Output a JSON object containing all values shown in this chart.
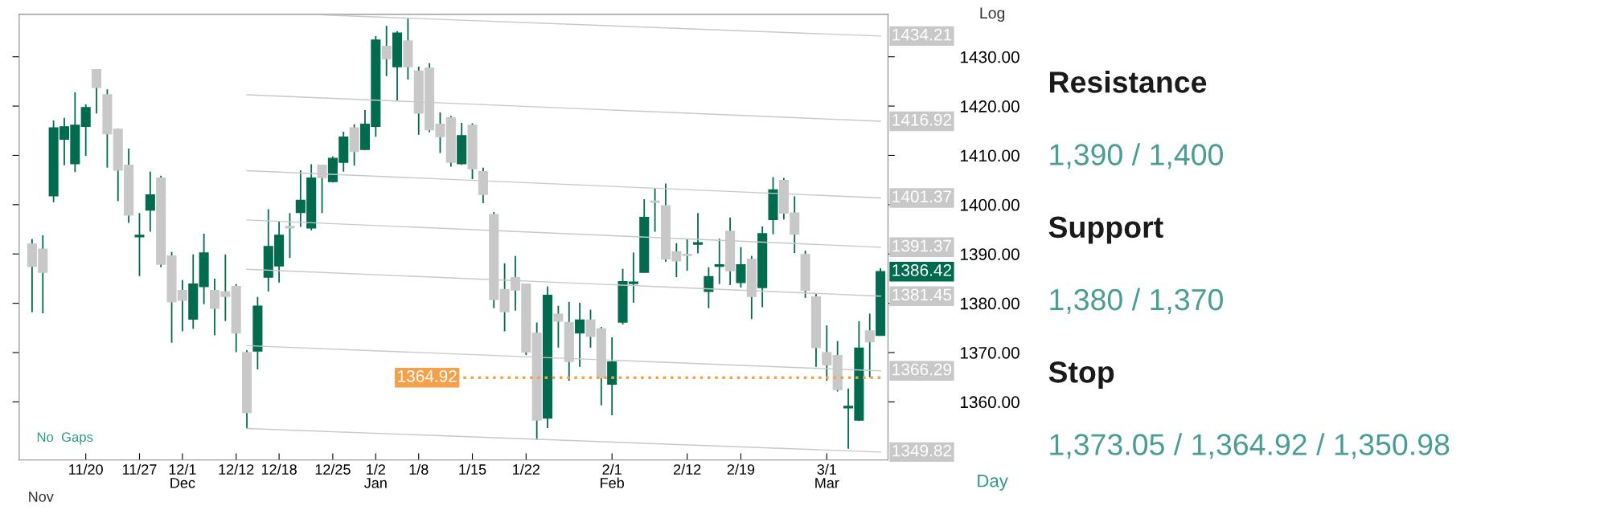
{
  "chart_data": [
    {
      "type": "candlestick",
      "categories": [
        null,
        null,
        null,
        null,
        null,
        "11/20",
        null,
        null,
        null,
        null,
        "11/27",
        null,
        null,
        null,
        "12/1\nDec",
        null,
        null,
        null,
        null,
        "12/12",
        null,
        null,
        null,
        "12/18",
        null,
        null,
        null,
        null,
        "12/25",
        null,
        null,
        null,
        "1/2\nJan",
        null,
        null,
        null,
        "1/8",
        null,
        null,
        null,
        null,
        "1/15",
        null,
        null,
        null,
        null,
        "1/22",
        null,
        null,
        null,
        null,
        null,
        null,
        null,
        "2/1\nFeb",
        null,
        null,
        null,
        null,
        null,
        null,
        "2/12",
        null,
        null,
        null,
        null,
        "2/19",
        null,
        null,
        null,
        null,
        null,
        null,
        null,
        "3/1\nMar",
        null,
        null,
        null,
        null,
        null
      ],
      "ohlc": [
        [
          1392.0,
          1393.0,
          1378.2,
          1387.5
        ],
        [
          1391.0,
          1393.8,
          1378.0,
          1386.3
        ],
        [
          1401.8,
          1417.1,
          1400.5,
          1415.6
        ],
        [
          1413.3,
          1417.6,
          1408.0,
          1415.8
        ],
        [
          1408.3,
          1422.8,
          1406.6,
          1416.1
        ],
        [
          1415.9,
          1420.4,
          1409.9,
          1419.7
        ],
        [
          1427.4,
          1427.5,
          1418.5,
          1423.8
        ],
        [
          1422.3,
          1423.4,
          1407.5,
          1414.4
        ],
        [
          1415.3,
          1415.4,
          1400.7,
          1407.0
        ],
        [
          1408.0,
          1411.4,
          1396.3,
          1397.9
        ],
        [
          1393.5,
          1398.3,
          1385.5,
          1393.8
        ],
        [
          1398.9,
          1406.7,
          1394.5,
          1402.0
        ],
        [
          1405.4,
          1405.9,
          1387.3,
          1387.9
        ],
        [
          1389.6,
          1390.4,
          1372.0,
          1380.3
        ],
        [
          1382.6,
          1384.7,
          1374.3,
          1380.6
        ],
        [
          1376.8,
          1389.9,
          1374.8,
          1383.9
        ],
        [
          1383.4,
          1394.1,
          1379.8,
          1390.2
        ],
        [
          1382.6,
          1385.0,
          1373.5,
          1379.0
        ],
        [
          1382.3,
          1389.9,
          1376.4,
          1381.4
        ],
        [
          1383.4,
          1383.9,
          1370.1,
          1374.0
        ],
        [
          1370.0,
          1370.5,
          1354.6,
          1357.8
        ],
        [
          1370.3,
          1381.3,
          1366.6,
          1379.4
        ],
        [
          1385.3,
          1399.1,
          1382.4,
          1391.5
        ],
        [
          1387.6,
          1396.6,
          1384.2,
          1393.8
        ],
        [
          1395.6,
          1398.3,
          1389.2,
          1395.3
        ],
        [
          1398.4,
          1407.0,
          1395.5,
          1400.9
        ],
        [
          1395.3,
          1408.2,
          1394.8,
          1405.4
        ],
        [
          1408.0,
          1408.1,
          1398.3,
          1405.5
        ],
        [
          1404.7,
          1409.8,
          1404.5,
          1409.4
        ],
        [
          1408.6,
          1414.8,
          1406.7,
          1413.7
        ],
        [
          1415.6,
          1416.3,
          1407.9,
          1410.8
        ],
        [
          1411.2,
          1419.2,
          1411.1,
          1416.3
        ],
        [
          1415.9,
          1434.2,
          1413.8,
          1433.4
        ],
        [
          1432.1,
          1436.3,
          1426.1,
          1429.6
        ],
        [
          1428.0,
          1435.2,
          1421.1,
          1434.8
        ],
        [
          1433.2,
          1437.8,
          1425.4,
          1428.0
        ],
        [
          1427.1,
          1428.0,
          1414.2,
          1418.6
        ],
        [
          1427.7,
          1428.7,
          1414.7,
          1415.2
        ],
        [
          1416.3,
          1418.7,
          1410.5,
          1413.8
        ],
        [
          1417.6,
          1418.0,
          1407.7,
          1408.6
        ],
        [
          1408.3,
          1416.6,
          1408.1,
          1414.0
        ],
        [
          1416.1,
          1416.5,
          1405.2,
          1407.3
        ],
        [
          1406.7,
          1407.5,
          1400.3,
          1402.1
        ],
        [
          1398.0,
          1398.5,
          1379.0,
          1380.8
        ],
        [
          1382.8,
          1388.1,
          1374.3,
          1378.3
        ],
        [
          1385.2,
          1389.6,
          1378.5,
          1382.7
        ],
        [
          1383.9,
          1384.0,
          1369.5,
          1370.1
        ],
        [
          1373.9,
          1376.1,
          1352.3,
          1356.3
        ],
        [
          1356.7,
          1383.4,
          1354.7,
          1381.6
        ],
        [
          1377.8,
          1379.5,
          1371.0,
          1376.4
        ],
        [
          1376.1,
          1380.3,
          1364.3,
          1368.2
        ],
        [
          1374.0,
          1380.1,
          1367.1,
          1376.6
        ],
        [
          1376.6,
          1378.7,
          1371.0,
          1373.3
        ],
        [
          1374.8,
          1375.2,
          1359.3,
          1364.9
        ],
        [
          1363.6,
          1373.1,
          1357.3,
          1368.1
        ],
        [
          1376.2,
          1387.0,
          1375.7,
          1384.4
        ],
        [
          1384.0,
          1390.3,
          1380.1,
          1384.3
        ],
        [
          1386.3,
          1401.1,
          1386.2,
          1397.4
        ],
        [
          1400.7,
          1403.4,
          1394.5,
          1400.5
        ],
        [
          1399.8,
          1404.3,
          1388.4,
          1389.0
        ],
        [
          1390.4,
          1392.2,
          1385.3,
          1388.6
        ],
        [
          1389.9,
          1393.0,
          1386.6,
          1389.7
        ],
        [
          1392.0,
          1398.3,
          1390.1,
          1392.3
        ],
        [
          1382.4,
          1387.3,
          1379.0,
          1385.4
        ],
        [
          1387.5,
          1393.1,
          1383.9,
          1387.8
        ],
        [
          1394.6,
          1397.4,
          1383.7,
          1386.6
        ],
        [
          1384.2,
          1391.4,
          1383.2,
          1387.8
        ],
        [
          1388.9,
          1389.6,
          1376.8,
          1381.4
        ],
        [
          1383.2,
          1395.6,
          1379.2,
          1394.1
        ],
        [
          1397.0,
          1405.6,
          1394.0,
          1403.0
        ],
        [
          1404.9,
          1405.4,
          1397.0,
          1398.3
        ],
        [
          1398.3,
          1401.7,
          1390.2,
          1394.0
        ],
        [
          1389.9,
          1390.7,
          1381.1,
          1382.6
        ],
        [
          1381.3,
          1381.9,
          1367.1,
          1371.0
        ],
        [
          1370.0,
          1375.5,
          1364.3,
          1367.5
        ],
        [
          1369.4,
          1372.3,
          1362.1,
          1362.5
        ],
        [
          1358.8,
          1362.7,
          1350.5,
          1359.1
        ],
        [
          1356.3,
          1376.4,
          1356.1,
          1370.9
        ],
        [
          1374.4,
          1377.9,
          1365.0,
          1372.2
        ],
        [
          1373.5,
          1387.1,
          1373.4,
          1386.42
        ]
      ],
      "colors": [
        "#c8c8c8",
        "#c8c8c8",
        "#006b4f",
        "#006b4f",
        "#006b4f",
        "#006b4f",
        "#c8c8c8",
        "#c8c8c8",
        "#c8c8c8",
        "#c8c8c8",
        "#006b4f",
        "#006b4f",
        "#c8c8c8",
        "#c8c8c8",
        "#c8c8c8",
        "#006b4f",
        "#006b4f",
        "#c8c8c8",
        "#c8c8c8",
        "#c8c8c8",
        "#c8c8c8",
        "#006b4f",
        "#006b4f",
        "#006b4f",
        "#c8c8c8",
        "#006b4f",
        "#006b4f",
        "#c8c8c8",
        "#006b4f",
        "#006b4f",
        "#c8c8c8",
        "#006b4f",
        "#006b4f",
        "#c8c8c8",
        "#006b4f",
        "#c8c8c8",
        "#c8c8c8",
        "#c8c8c8",
        "#c8c8c8",
        "#c8c8c8",
        "#006b4f",
        "#c8c8c8",
        "#c8c8c8",
        "#c8c8c8",
        "#c8c8c8",
        "#c8c8c8",
        "#c8c8c8",
        "#c8c8c8",
        "#006b4f",
        "#c8c8c8",
        "#c8c8c8",
        "#006b4f",
        "#c8c8c8",
        "#c8c8c8",
        "#006b4f",
        "#006b4f",
        "#006b4f",
        "#006b4f",
        "#c8c8c8",
        "#c8c8c8",
        "#c8c8c8",
        "#c8c8c8",
        "#006b4f",
        "#006b4f",
        "#006b4f",
        "#c8c8c8",
        "#006b4f",
        "#c8c8c8",
        "#006b4f",
        "#006b4f",
        "#c8c8c8",
        "#c8c8c8",
        "#c8c8c8",
        "#c8c8c8",
        "#c8c8c8",
        "#c8c8c8",
        "#006b4f",
        "#006b4f",
        "#c8c8c8",
        "#006b4f"
      ],
      "color": "#006b4f",
      "series": [
        {
          "type": "line",
          "color": "#c8c8c8",
          "values": [
            null,
            null,
            null,
            null,
            null,
            null,
            null,
            null,
            null,
            null,
            null,
            null,
            null,
            null,
            null,
            null,
            null,
            null,
            null,
            null,
            null,
            null,
            null,
            null,
            null,
            null,
            null,
            1438.5,
            null,
            null,
            null,
            null,
            null,
            null,
            null,
            null,
            null,
            null,
            null,
            null,
            null,
            null,
            null,
            null,
            null,
            null,
            null,
            null,
            null,
            null,
            null,
            null,
            null,
            null,
            null,
            null,
            null,
            null,
            null,
            null,
            null,
            null,
            null,
            null,
            null,
            null,
            null,
            null,
            null,
            null,
            null,
            null,
            null,
            null,
            null,
            null,
            null,
            null,
            null,
            1434.21
          ],
          "value_labels": [
            null,
            null,
            null,
            null,
            null,
            null,
            null,
            null,
            null,
            null,
            null,
            null,
            null,
            null,
            null,
            null,
            null,
            null,
            null,
            null,
            null,
            null,
            null,
            null,
            null,
            null,
            null,
            null,
            null,
            null,
            null,
            null,
            null,
            null,
            null,
            null,
            null,
            null,
            null,
            null,
            null,
            null,
            null,
            null,
            null,
            null,
            null,
            null,
            null,
            null,
            null,
            null,
            null,
            null,
            null,
            null,
            null,
            null,
            null,
            null,
            null,
            null,
            null,
            null,
            null,
            null,
            null,
            null,
            null,
            null,
            null,
            null,
            null,
            null,
            null,
            null,
            null,
            null,
            null,
            "1434.21"
          ]
        },
        {
          "type": "line",
          "color": "#c8c8c8",
          "values": [
            null,
            null,
            null,
            null,
            null,
            null,
            null,
            null,
            null,
            null,
            null,
            null,
            null,
            null,
            null,
            null,
            null,
            null,
            null,
            null,
            1422.3,
            null,
            null,
            null,
            null,
            null,
            null,
            null,
            null,
            null,
            null,
            null,
            null,
            null,
            null,
            null,
            null,
            null,
            null,
            null,
            null,
            null,
            null,
            null,
            null,
            null,
            null,
            null,
            null,
            null,
            null,
            null,
            null,
            null,
            null,
            null,
            null,
            null,
            null,
            null,
            null,
            null,
            null,
            null,
            null,
            null,
            null,
            null,
            null,
            null,
            null,
            null,
            null,
            null,
            null,
            null,
            null,
            null,
            null,
            1416.92
          ],
          "value_labels": [
            null,
            null,
            null,
            null,
            null,
            null,
            null,
            null,
            null,
            null,
            null,
            null,
            null,
            null,
            null,
            null,
            null,
            null,
            null,
            null,
            null,
            null,
            null,
            null,
            null,
            null,
            null,
            null,
            null,
            null,
            null,
            null,
            null,
            null,
            null,
            null,
            null,
            null,
            null,
            null,
            null,
            null,
            null,
            null,
            null,
            null,
            null,
            null,
            null,
            null,
            null,
            null,
            null,
            null,
            null,
            null,
            null,
            null,
            null,
            null,
            null,
            null,
            null,
            null,
            null,
            null,
            null,
            null,
            null,
            null,
            null,
            null,
            null,
            null,
            null,
            null,
            null,
            null,
            null,
            "1416.92"
          ]
        },
        {
          "type": "line",
          "color": "#c8c8c8",
          "values": [
            null,
            null,
            null,
            null,
            null,
            null,
            null,
            null,
            null,
            null,
            null,
            null,
            null,
            null,
            null,
            null,
            null,
            null,
            null,
            null,
            1406.9,
            null,
            null,
            null,
            null,
            null,
            null,
            null,
            null,
            null,
            null,
            null,
            null,
            null,
            null,
            null,
            null,
            null,
            null,
            null,
            null,
            null,
            null,
            null,
            null,
            null,
            null,
            null,
            null,
            null,
            null,
            null,
            null,
            null,
            null,
            null,
            null,
            null,
            null,
            null,
            null,
            null,
            null,
            null,
            null,
            null,
            null,
            null,
            null,
            null,
            null,
            null,
            null,
            null,
            null,
            null,
            null,
            null,
            null,
            1401.37
          ],
          "value_labels": [
            null,
            null,
            null,
            null,
            null,
            null,
            null,
            null,
            null,
            null,
            null,
            null,
            null,
            null,
            null,
            null,
            null,
            null,
            null,
            null,
            null,
            null,
            null,
            null,
            null,
            null,
            null,
            null,
            null,
            null,
            null,
            null,
            null,
            null,
            null,
            null,
            null,
            null,
            null,
            null,
            null,
            null,
            null,
            null,
            null,
            null,
            null,
            null,
            null,
            null,
            null,
            null,
            null,
            null,
            null,
            null,
            null,
            null,
            null,
            null,
            null,
            null,
            null,
            null,
            null,
            null,
            null,
            null,
            null,
            null,
            null,
            null,
            null,
            null,
            null,
            null,
            null,
            null,
            null,
            "1401.37"
          ]
        },
        {
          "type": "line",
          "color": "#c8c8c8",
          "values": [
            null,
            null,
            null,
            null,
            null,
            null,
            null,
            null,
            null,
            null,
            null,
            null,
            null,
            null,
            null,
            null,
            null,
            null,
            null,
            null,
            1396.9,
            null,
            null,
            null,
            null,
            null,
            null,
            null,
            null,
            null,
            null,
            null,
            null,
            null,
            null,
            null,
            null,
            null,
            null,
            null,
            null,
            null,
            null,
            null,
            null,
            null,
            null,
            null,
            null,
            null,
            null,
            null,
            null,
            null,
            null,
            null,
            null,
            null,
            null,
            null,
            null,
            null,
            null,
            null,
            null,
            null,
            null,
            null,
            null,
            null,
            null,
            null,
            null,
            null,
            null,
            null,
            null,
            null,
            null,
            1391.37
          ],
          "value_labels": [
            null,
            null,
            null,
            null,
            null,
            null,
            null,
            null,
            null,
            null,
            null,
            null,
            null,
            null,
            null,
            null,
            null,
            null,
            null,
            null,
            null,
            null,
            null,
            null,
            null,
            null,
            null,
            null,
            null,
            null,
            null,
            null,
            null,
            null,
            null,
            null,
            null,
            null,
            null,
            null,
            null,
            null,
            null,
            null,
            null,
            null,
            null,
            null,
            null,
            null,
            null,
            null,
            null,
            null,
            null,
            null,
            null,
            null,
            null,
            null,
            null,
            null,
            null,
            null,
            null,
            null,
            null,
            null,
            null,
            null,
            null,
            null,
            null,
            null,
            null,
            null,
            null,
            null,
            null,
            "1391.37"
          ]
        },
        {
          "type": "line",
          "color": "#c8c8c8",
          "values": [
            null,
            null,
            null,
            null,
            null,
            null,
            null,
            null,
            null,
            null,
            null,
            null,
            null,
            null,
            null,
            null,
            null,
            null,
            null,
            null,
            1386.9,
            null,
            null,
            null,
            null,
            null,
            null,
            null,
            null,
            null,
            null,
            null,
            null,
            null,
            null,
            null,
            null,
            null,
            null,
            null,
            null,
            null,
            null,
            null,
            null,
            null,
            null,
            null,
            null,
            null,
            null,
            null,
            null,
            null,
            null,
            null,
            null,
            null,
            null,
            null,
            null,
            null,
            null,
            null,
            null,
            null,
            null,
            null,
            null,
            null,
            null,
            null,
            null,
            null,
            null,
            null,
            null,
            null,
            null,
            1381.45
          ],
          "value_labels": [
            null,
            null,
            null,
            null,
            null,
            null,
            null,
            null,
            null,
            null,
            null,
            null,
            null,
            null,
            null,
            null,
            null,
            null,
            null,
            null,
            null,
            null,
            null,
            null,
            null,
            null,
            null,
            null,
            null,
            null,
            null,
            null,
            null,
            null,
            null,
            null,
            null,
            null,
            null,
            null,
            null,
            null,
            null,
            null,
            null,
            null,
            null,
            null,
            null,
            null,
            null,
            null,
            null,
            null,
            null,
            null,
            null,
            null,
            null,
            null,
            null,
            null,
            null,
            null,
            null,
            null,
            null,
            null,
            null,
            null,
            null,
            null,
            null,
            null,
            null,
            null,
            null,
            null,
            null,
            "1381.45"
          ]
        },
        {
          "type": "line",
          "color": "#c8c8c8",
          "values": [
            null,
            null,
            null,
            null,
            null,
            null,
            null,
            null,
            null,
            null,
            null,
            null,
            null,
            null,
            null,
            null,
            null,
            null,
            null,
            null,
            1371.4,
            null,
            null,
            null,
            null,
            null,
            null,
            null,
            null,
            null,
            null,
            null,
            null,
            null,
            null,
            null,
            null,
            null,
            null,
            null,
            null,
            null,
            null,
            null,
            null,
            null,
            null,
            null,
            null,
            null,
            null,
            null,
            null,
            null,
            null,
            null,
            null,
            null,
            null,
            null,
            null,
            null,
            null,
            null,
            null,
            null,
            null,
            null,
            null,
            null,
            null,
            null,
            null,
            null,
            null,
            null,
            null,
            null,
            null,
            1366.29
          ],
          "value_labels": [
            null,
            null,
            null,
            null,
            null,
            null,
            null,
            null,
            null,
            null,
            null,
            null,
            null,
            null,
            null,
            null,
            null,
            null,
            null,
            null,
            null,
            null,
            null,
            null,
            null,
            null,
            null,
            null,
            null,
            null,
            null,
            null,
            null,
            null,
            null,
            null,
            null,
            null,
            null,
            null,
            null,
            null,
            null,
            null,
            null,
            null,
            null,
            null,
            null,
            null,
            null,
            null,
            null,
            null,
            null,
            null,
            null,
            null,
            null,
            null,
            null,
            null,
            null,
            null,
            null,
            null,
            null,
            null,
            null,
            null,
            null,
            null,
            null,
            null,
            null,
            null,
            null,
            null,
            null,
            "1366.29"
          ]
        },
        {
          "type": "line",
          "color": "#c8c8c8",
          "values": [
            null,
            null,
            null,
            null,
            null,
            null,
            null,
            null,
            null,
            null,
            null,
            null,
            null,
            null,
            null,
            null,
            null,
            null,
            null,
            null,
            1354.6,
            null,
            null,
            null,
            null,
            null,
            null,
            null,
            null,
            null,
            null,
            null,
            null,
            null,
            null,
            null,
            null,
            null,
            null,
            null,
            null,
            null,
            null,
            null,
            null,
            null,
            null,
            null,
            null,
            null,
            null,
            null,
            null,
            null,
            null,
            null,
            null,
            null,
            null,
            null,
            null,
            null,
            null,
            null,
            null,
            null,
            null,
            null,
            null,
            null,
            null,
            null,
            null,
            null,
            null,
            null,
            null,
            null,
            null,
            1349.82
          ],
          "value_labels": [
            null,
            null,
            null,
            null,
            null,
            null,
            null,
            null,
            null,
            null,
            null,
            null,
            null,
            null,
            null,
            null,
            null,
            null,
            null,
            null,
            null,
            null,
            null,
            null,
            null,
            null,
            null,
            null,
            null,
            null,
            null,
            null,
            null,
            null,
            null,
            null,
            null,
            null,
            null,
            null,
            null,
            null,
            null,
            null,
            null,
            null,
            null,
            null,
            null,
            null,
            null,
            null,
            null,
            null,
            null,
            null,
            null,
            null,
            null,
            null,
            null,
            null,
            null,
            null,
            null,
            null,
            null,
            null,
            null,
            null,
            null,
            null,
            null,
            null,
            null,
            null,
            null,
            null,
            null,
            "1349.82"
          ]
        },
        {
          "type": "line",
          "color": "#f5a04a",
          "line_style": "dotted",
          "values": [
            null,
            null,
            null,
            null,
            null,
            null,
            null,
            null,
            null,
            null,
            null,
            null,
            null,
            null,
            null,
            null,
            null,
            null,
            null,
            null,
            null,
            null,
            null,
            null,
            null,
            null,
            null,
            null,
            null,
            null,
            null,
            null,
            null,
            null,
            null,
            null,
            null,
            null,
            null,
            null,
            1364.92,
            null,
            null,
            null,
            null,
            null,
            null,
            null,
            null,
            null,
            null,
            null,
            null,
            null,
            null,
            null,
            null,
            null,
            null,
            null,
            null,
            null,
            null,
            null,
            null,
            null,
            null,
            null,
            null,
            null,
            null,
            null,
            null,
            null,
            null,
            null,
            null,
            null,
            null,
            1364.92
          ],
          "value_labels": [
            null,
            null,
            null,
            null,
            null,
            null,
            null,
            null,
            null,
            null,
            null,
            null,
            null,
            null,
            null,
            null,
            null,
            null,
            null,
            null,
            null,
            null,
            null,
            null,
            null,
            null,
            null,
            null,
            null,
            null,
            null,
            null,
            null,
            null,
            null,
            null,
            null,
            null,
            null,
            null,
            "1364.92",
            null,
            null,
            null,
            null,
            null,
            null,
            null,
            null,
            null,
            null,
            null,
            null,
            null,
            null,
            null,
            null,
            null,
            null,
            null,
            null,
            null,
            null,
            null,
            null,
            null,
            null,
            null,
            null,
            null,
            null,
            null,
            null,
            null,
            null,
            null,
            null,
            null,
            null,
            null
          ]
        }
      ],
      "ylim": [
        1348.2,
        1438.6
      ],
      "yticks": [
        {
          "value": 1360,
          "label": "1360.00"
        },
        {
          "value": 1370,
          "label": "1370.00"
        },
        {
          "value": 1380,
          "label": "1380.00"
        },
        {
          "value": 1390,
          "label": "1390.00"
        },
        {
          "value": 1400,
          "label": "1400.00"
        },
        {
          "value": 1410,
          "label": "1410.00"
        },
        {
          "value": 1420,
          "label": "1420.00"
        },
        {
          "value": 1430,
          "label": "1430.00"
        }
      ],
      "annotations": [
        "No  Gaps",
        "Log",
        "Day",
        "Nov",
        "1386.42"
      ]
    },
    {
      "type": "other",
      "colors": [
        "#1a1a1a",
        "#4a9d94"
      ],
      "annotations": [
        "Resistance",
        "1,390 / 1,400",
        "Support",
        "1,380 / 1,370",
        "Stop",
        "1,373.05 / 1,364.92 / 1,350.98"
      ]
    }
  ]
}
